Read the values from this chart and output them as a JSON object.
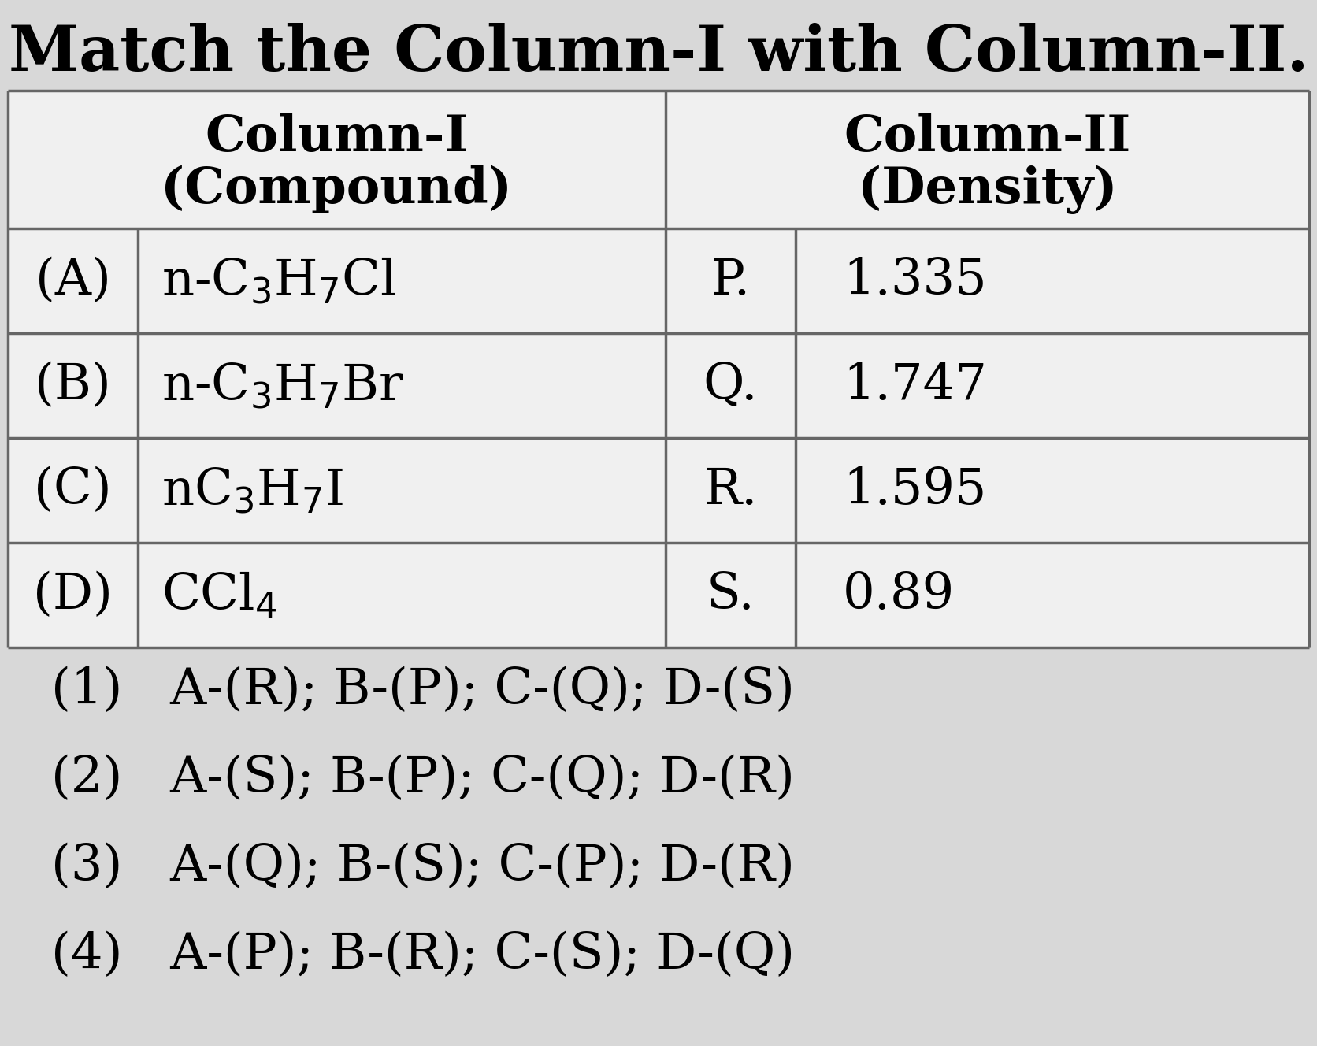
{
  "title": "Match the Column-I with Column-II.",
  "title_fontsize": 58,
  "bg_color": "#d8d8d8",
  "col1_header1": "Column-I",
  "col1_header2": "(Compound)",
  "col2_header1": "Column-II",
  "col2_header2": "(Density)",
  "col1_labels": [
    "(A)",
    "(B)",
    "(C)",
    "(D)"
  ],
  "col1_compounds_latex": [
    "n-C$_3$H$_7$Cl",
    "n-C$_3$H$_7$Br",
    "nC$_3$H$_7$I",
    "CCl$_4$"
  ],
  "col2_labels": [
    "P.",
    "Q.",
    "R.",
    "S."
  ],
  "col2_values": [
    "1.335",
    "1.747",
    "1.595",
    "0.89"
  ],
  "options": [
    "(1)   A-(R); B-(P); C-(Q); D-(S)",
    "(2)   A-(S); B-(P); C-(Q); D-(R)",
    "(3)   A-(Q); B-(S); C-(P); D-(R)",
    "(4)   A-(P); B-(R); C-(S); D-(Q)"
  ],
  "header_fontsize": 46,
  "cell_fontsize": 46,
  "option_fontsize": 46,
  "line_color": "#666666",
  "line_width": 2.5
}
